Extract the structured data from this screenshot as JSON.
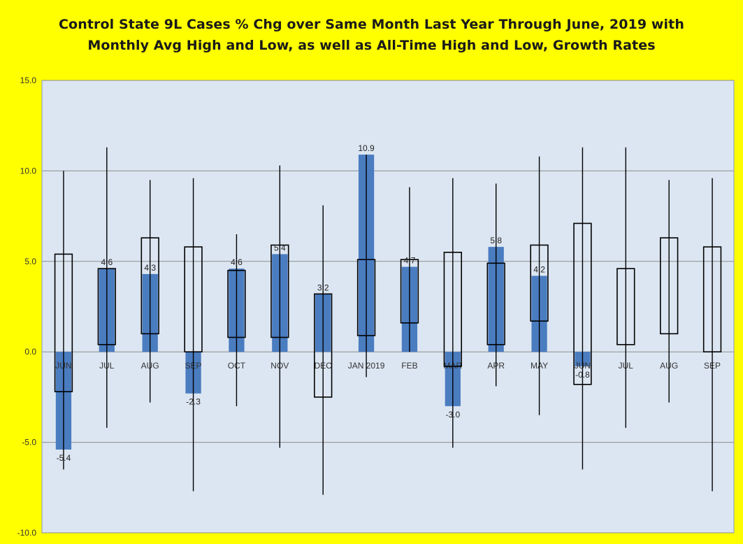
{
  "chart_data": {
    "type": "bar",
    "title_line1": "Control State 9L Cases % Chg over Same Month Last Year Through June, 2019 with",
    "title_line2": "Monthly Avg High and Low, as well as All-Time High and Low,  Growth Rates",
    "ylim": [
      -10,
      15
    ],
    "y_ticks": [
      "15.0",
      "10.0",
      "5.0",
      "0.0",
      "-5.0",
      "-10.0"
    ],
    "y_tick_values": [
      15,
      10,
      5,
      0,
      -5,
      -10
    ],
    "grid": true,
    "colors": {
      "bar": "#4a7cc0",
      "plot_bg": "#dce6f2",
      "page_bg": "#ffff00",
      "box": "#000000"
    },
    "categories": [
      "JUN",
      "JUL",
      "AUG",
      "SEP",
      "OCT",
      "NOV",
      "DEC",
      "JAN 2019",
      "FEB",
      "MAR",
      "APR",
      "MAY",
      "JUN",
      "JUL",
      "AUG",
      "SEP"
    ],
    "series": [
      {
        "name": "",
        "values": [
          -5.4,
          4.6,
          4.3,
          -2.3,
          4.6,
          5.4,
          3.2,
          10.9,
          4.7,
          -3.0,
          5.8,
          4.2,
          -0.8,
          null,
          null,
          null
        ]
      }
    ],
    "data_labels": [
      "-5.4",
      "4.6",
      "4.3",
      "-2.3",
      "4.6",
      "5.4",
      "3.2",
      "10.9",
      "4.7",
      "-3.0",
      "5.8",
      "4.2",
      "-0.8",
      "",
      "",
      ""
    ],
    "avg_high": [
      5.4,
      4.6,
      6.3,
      5.8,
      4.5,
      5.9,
      3.2,
      5.1,
      5.1,
      5.5,
      4.9,
      5.9,
      7.1,
      4.6,
      6.3,
      5.8
    ],
    "avg_low": [
      -2.2,
      0.4,
      1.0,
      0.0,
      0.8,
      0.8,
      -2.5,
      0.9,
      1.6,
      -0.8,
      0.4,
      1.7,
      -1.8,
      0.4,
      1.0,
      0.0
    ],
    "all_time_high": [
      10.0,
      11.3,
      9.5,
      9.6,
      6.5,
      10.3,
      8.1,
      10.9,
      9.1,
      9.6,
      9.3,
      10.8,
      11.3,
      11.3,
      9.5,
      9.6
    ],
    "all_time_low": [
      -6.5,
      -4.2,
      -2.8,
      -7.7,
      -3.0,
      -5.3,
      -7.9,
      -1.4,
      0.0,
      -5.3,
      -1.9,
      -3.5,
      -6.5,
      -4.2,
      -2.8,
      -7.7
    ]
  }
}
